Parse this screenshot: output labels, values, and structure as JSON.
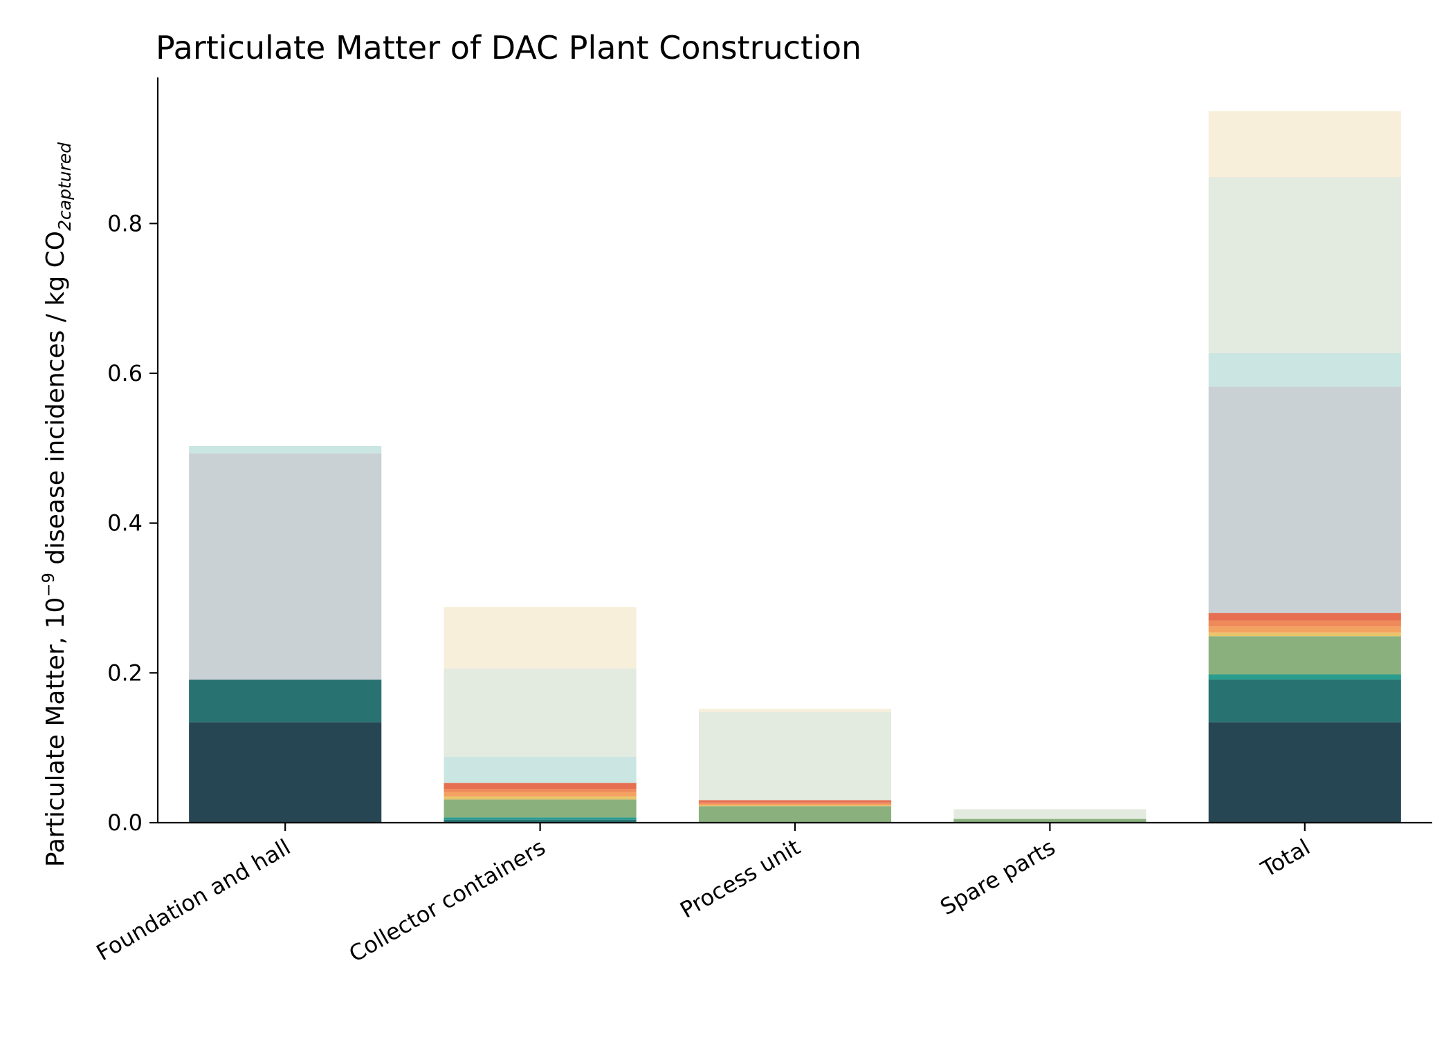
{
  "chart_data": {
    "type": "bar",
    "stacked": true,
    "title": "Particulate Matter of DAC Plant Construction",
    "ylabel": {
      "prefix": "Particulate Matter, 10",
      "exponent": "−9",
      "middle": " disease incidences / kg CO",
      "subscript": "2captured"
    },
    "xlabel": "",
    "ylim": [
      0,
      0.995
    ],
    "yticks": [
      {
        "value": 0.0,
        "label": "0.0"
      },
      {
        "value": 0.2,
        "label": "0.2"
      },
      {
        "value": 0.4,
        "label": "0.4"
      },
      {
        "value": 0.6,
        "label": "0.6"
      },
      {
        "value": 0.8,
        "label": "0.8"
      }
    ],
    "categories": [
      "Foundation and hall",
      "Collector containers",
      "Process unit",
      "Spare parts",
      "Total"
    ],
    "grid": false,
    "legend": "none",
    "series": [
      {
        "color": "#264653",
        "values": [
          0.134,
          0.0,
          0.0,
          0.0,
          0.134
        ]
      },
      {
        "color": "#287271",
        "values": [
          0.057,
          0.004,
          0.0,
          0.0,
          0.057
        ]
      },
      {
        "color": "#2a9d8f",
        "values": [
          0.0,
          0.003,
          0.0,
          0.0,
          0.007
        ]
      },
      {
        "color": "#8ab17d",
        "values": [
          0.0,
          0.024,
          0.022,
          0.005,
          0.051
        ]
      },
      {
        "color": "#e9c46a",
        "values": [
          0.0,
          0.004,
          0.001,
          0.0,
          0.005
        ]
      },
      {
        "color": "#f4a261",
        "values": [
          0.0,
          0.006,
          0.002,
          0.0,
          0.008
        ]
      },
      {
        "color": "#ee8959",
        "values": [
          0.0,
          0.004,
          0.002,
          0.0,
          0.008
        ]
      },
      {
        "color": "#e76f51",
        "values": [
          0.0,
          0.008,
          0.003,
          0.0,
          0.01
        ]
      },
      {
        "color": "#c9d1d4",
        "values": [
          0.302,
          0.0,
          0.0,
          0.0,
          0.302
        ]
      },
      {
        "color": "#cbe5e2",
        "values": [
          0.01,
          0.035,
          0.0,
          0.0,
          0.045
        ]
      },
      {
        "color": "#e3eadf",
        "values": [
          0.0,
          0.118,
          0.118,
          0.013,
          0.235
        ]
      },
      {
        "color": "#f8efdb",
        "values": [
          0.0,
          0.082,
          0.004,
          0.0,
          0.088
        ]
      }
    ]
  }
}
